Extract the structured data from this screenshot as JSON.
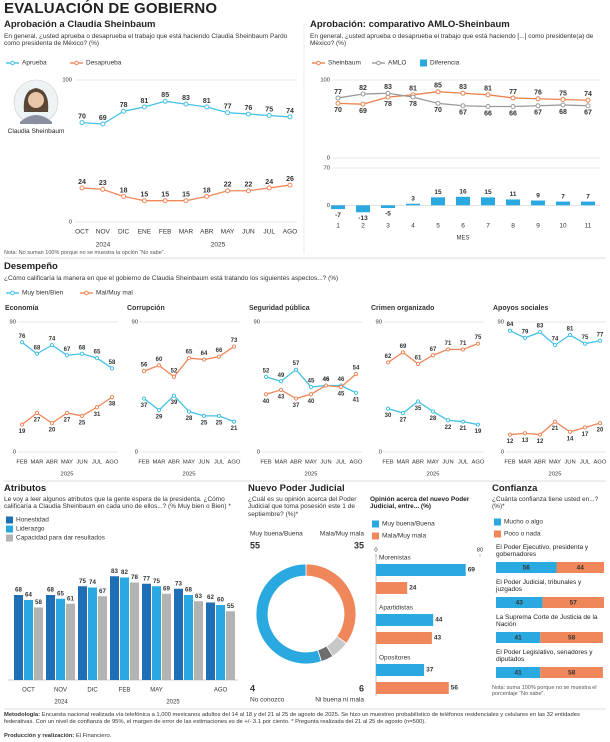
{
  "title": "EVALUACIÓN DE GOBIERNO",
  "chart_data": [
    {
      "type": "line",
      "title": "Aprobación a Claudia Sheinbaum",
      "subtitle": "En general, ¿usted aprueba o desaprueba el trabajo que está haciendo Claudia Sheinbaum Pardo como presidenta de México? (%)",
      "photo_caption": "Claudia Sheinbaum",
      "categories": [
        "OCT",
        "NOV",
        "DIC",
        "ENE",
        "FEB",
        "MAR",
        "ABR",
        "MAY",
        "JUN",
        "JUL",
        "AGO"
      ],
      "years": [
        "2024",
        "2025"
      ],
      "series": [
        {
          "name": "Aprueba",
          "color": "#45c1e6",
          "values": [
            70,
            69,
            78,
            81,
            85,
            83,
            81,
            77,
            76,
            75,
            74
          ]
        },
        {
          "name": "Desaprueba",
          "color": "#f0875a",
          "values": [
            24,
            23,
            18,
            15,
            15,
            15,
            18,
            22,
            22,
            24,
            26
          ]
        }
      ],
      "ylim": [
        0,
        100
      ],
      "yticks": [
        0,
        100
      ],
      "grid": true,
      "note": "Nota: No suman 100% porque no se muestra la opción “No sabe”."
    },
    {
      "type": "line",
      "title": "Aprobación: comparativo AMLO-Sheinbaum",
      "subtitle": "En general, ¿usted aprueba o desaprueba el trabajo que está haciendo [...] como presidente(a) de México? (%)",
      "categories": [
        "1",
        "2",
        "3",
        "4",
        "5",
        "6",
        "7",
        "8",
        "9",
        "10",
        "11"
      ],
      "xlabel": "MES",
      "series": [
        {
          "name": "Sheinbaum",
          "color": "#e8834f",
          "values": [
            70,
            69,
            78,
            81,
            85,
            83,
            81,
            77,
            76,
            75,
            74
          ]
        },
        {
          "name": "AMLO",
          "color": "#9a9a9a",
          "values": [
            77,
            82,
            83,
            78,
            70,
            67,
            66,
            66,
            67,
            68,
            67
          ]
        },
        {
          "name": "Diferencia",
          "type": "bar",
          "axis": "y2",
          "color": "#2aa9e0",
          "values": [
            -7,
            -13,
            -5,
            3,
            15,
            16,
            15,
            11,
            9,
            7,
            7
          ]
        }
      ],
      "ylim": [
        0,
        100
      ],
      "yticks": [
        0,
        100
      ],
      "y2lim": [
        -20,
        70
      ],
      "y2ticks": [
        0,
        70
      ],
      "grid": true
    },
    {
      "type": "line",
      "title": "Desempeño",
      "subtitle": "¿Cómo calificaría la manera en que el gobierno de Claudia Sheinbaum está tratando los siguientes aspectos...? (%)",
      "panels": [
        "Economía",
        "Corrupción",
        "Seguridad pública",
        "Crimen organizado",
        "Apoyos sociales"
      ],
      "categories": [
        "FEB",
        "MAR",
        "ABR",
        "MAY",
        "JUN",
        "JUL",
        "AGO"
      ],
      "years": [
        "2025"
      ],
      "series": [
        {
          "name": "Muy bien/Bien",
          "color": "#45c1e6",
          "values": [
            [
              76,
              68,
              74,
              67,
              68,
              65,
              58
            ],
            [
              37,
              29,
              39,
              28,
              25,
              25,
              21
            ],
            [
              52,
              49,
              57,
              45,
              46,
              46,
              41
            ],
            [
              30,
              27,
              35,
              28,
              22,
              21,
              19
            ],
            [
              84,
              79,
              83,
              74,
              81,
              75,
              77
            ]
          ]
        },
        {
          "name": "Mal/Muy mal",
          "color": "#f0875a",
          "values": [
            [
              19,
              27,
              20,
              27,
              25,
              31,
              38
            ],
            [
              56,
              60,
              52,
              65,
              64,
              66,
              73
            ],
            [
              40,
              43,
              37,
              40,
              46,
              45,
              54
            ],
            [
              62,
              69,
              61,
              67,
              71,
              71,
              75
            ],
            [
              12,
              13,
              12,
              21,
              14,
              17,
              20
            ]
          ]
        }
      ],
      "ylim": [
        0,
        90
      ],
      "yticks": [
        0,
        90
      ],
      "grid": true
    },
    {
      "type": "bar",
      "title": "Atributos",
      "subtitle": "Le voy a leer algunos atributos que la gente espera de la presidenta. ¿Cómo calificaría a Claudia Sheinbaum en cada uno de ellos...? (% Muy bien o Bien) *",
      "categories": [
        "OCT",
        "NOV",
        "DIC",
        "FEB",
        "MAY",
        null,
        "AGO"
      ],
      "years": [
        "2024",
        "2025"
      ],
      "series": [
        {
          "name": "Honestidad",
          "color": "#1f6fb5",
          "values": [
            68,
            68,
            75,
            83,
            77,
            73,
            62
          ]
        },
        {
          "name": "Liderazgo",
          "color": "#2aa9e0",
          "values": [
            64,
            65,
            74,
            82,
            75,
            68,
            60
          ]
        },
        {
          "name": "Capacidad para dar resultados",
          "color": "#b3b3b3",
          "values": [
            58,
            61,
            67,
            78,
            69,
            63,
            55
          ]
        }
      ],
      "ylim": [
        0,
        100
      ]
    },
    {
      "type": "pie",
      "title": "Nuevo Poder Judicial",
      "subtitle": "¿Cuál es su opinión acerca del Poder Judicial que toma posesión este 1 de septiembre? (%)*",
      "categories": [
        "Mala/Muy mala",
        "Ni buena ni mala",
        "No conozco",
        "Muy buena/Buena"
      ],
      "values": [
        35,
        6,
        4,
        55
      ],
      "colors": [
        "#f0875a",
        "#c8c8c8",
        "#6d6d6d",
        "#2aa9e0"
      ]
    },
    {
      "type": "barh",
      "title": "Opinión acerca del nuevo Poder Judicial, entre... (%)",
      "categories": [
        "Morenistas",
        "Apartidistas",
        "Opositores"
      ],
      "series": [
        {
          "name": "Muy buena/Buena",
          "color": "#2aa9e0",
          "values": [
            69,
            44,
            37
          ]
        },
        {
          "name": "Mala/Muy mala",
          "color": "#f0875a",
          "values": [
            24,
            43,
            56
          ]
        }
      ],
      "xlim": [
        0,
        80
      ],
      "xticks": [
        0,
        80
      ]
    },
    {
      "type": "stacked_barh",
      "title": "Confianza",
      "subtitle": "¿Cuánta confianza tiene usted en...? (%)*",
      "categories": [
        "El Poder Ejecutivo, presidenta y gobernadores",
        "El Poder Judicial, tribunales y juzgados",
        "La Suprema Corte de Justicia de la Nación",
        "El Poder Legislativo, senadores y diputados"
      ],
      "series": [
        {
          "name": "Mucho o algo",
          "color": "#2aa9e0",
          "values": [
            56,
            43,
            41,
            41
          ]
        },
        {
          "name": "Poco o nada",
          "color": "#f0875a",
          "values": [
            44,
            57,
            58,
            58
          ]
        }
      ],
      "xlim": [
        0,
        100
      ],
      "note": "Nota: suma 100% porque no se muestra el porcentaje “No sabe”."
    }
  ],
  "methodology": {
    "label": "Metodología:",
    "text": "Encuesta nacional realizada vía telefónica a 1,000 mexicanos adultos del 14 al 18 y del 21 al 25 de agosto de 2025. Se hizo un muestreo probabilístico de teléfonos residenciales y celulares en las 32 entidades federativas. Con un nivel de confianza de 95%, el margen de error de las estimaciones es de +/- 3.1 por ciento. * Pregunta realizada del 21 al 25 de agosto (n=500)."
  },
  "production": {
    "label": "Producción y realización:",
    "text": "El Financiero."
  }
}
